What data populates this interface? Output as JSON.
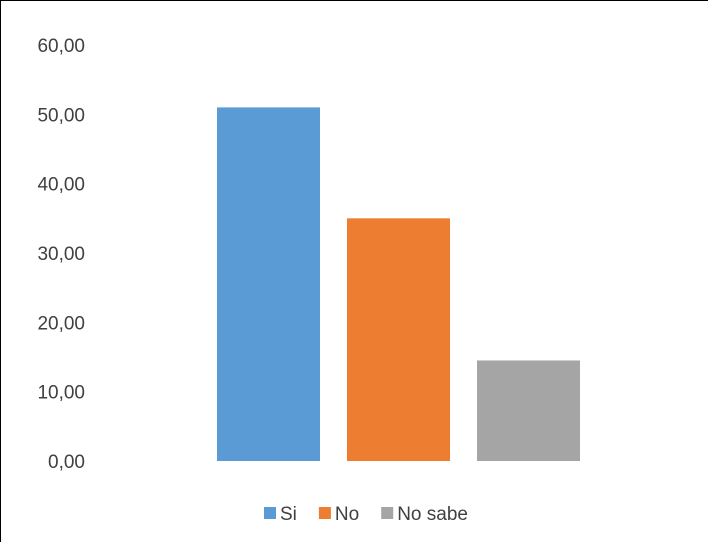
{
  "chart_data": {
    "type": "bar",
    "title": "",
    "xlabel": "",
    "ylabel": "",
    "ylim": [
      0,
      60
    ],
    "yticks": [
      "0,00",
      "10,00",
      "20,00",
      "30,00",
      "40,00",
      "50,00",
      "60,00"
    ],
    "grid": false,
    "legend_position": "bottom",
    "series": [
      {
        "name": "Si",
        "value": 51.0,
        "color": "#5B9BD5"
      },
      {
        "name": "No",
        "value": 35.0,
        "color": "#ED7D31"
      },
      {
        "name": "No sabe",
        "value": 14.5,
        "color": "#A5A5A5"
      }
    ]
  }
}
